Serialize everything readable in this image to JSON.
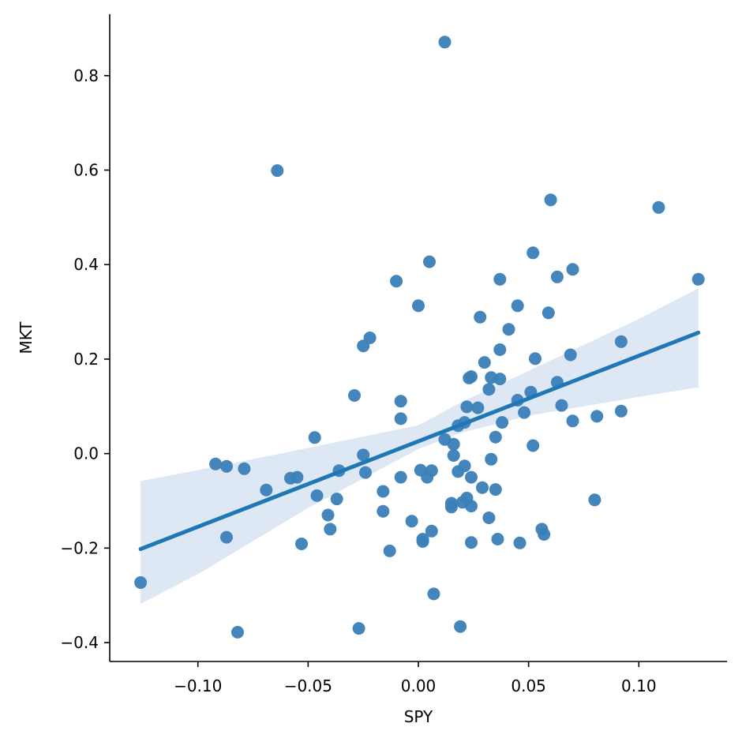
{
  "chart_data": {
    "type": "scatter",
    "title": "",
    "xlabel": "SPY",
    "ylabel": "MKT",
    "xlim": [
      -0.14,
      0.14
    ],
    "ylim": [
      -0.44,
      0.93
    ],
    "xticks": [
      -0.1,
      -0.05,
      0.0,
      0.05,
      0.1
    ],
    "xtick_labels": [
      "−0.10",
      "−0.05",
      "0.00",
      "0.05",
      "0.10"
    ],
    "yticks": [
      -0.4,
      -0.2,
      0.0,
      0.2,
      0.4,
      0.6,
      0.8
    ],
    "ytick_labels": [
      "−0.4",
      "−0.2",
      "0.0",
      "0.2",
      "0.4",
      "0.6",
      "0.8"
    ],
    "grid": false,
    "colors": {
      "points": "#3a7fb8",
      "regression_line": "#1f77b4",
      "confidence_band": "#c8d9ec"
    },
    "regression": {
      "x": [
        -0.126,
        0.127
      ],
      "y": [
        -0.202,
        0.256
      ],
      "ci_x": [
        -0.126,
        -0.1,
        -0.05,
        0.0,
        0.02,
        0.05,
        0.1,
        0.127
      ],
      "ci_upper": [
        -0.058,
        -0.035,
        0.012,
        0.06,
        0.11,
        0.175,
        0.285,
        0.35
      ],
      "ci_lower": [
        -0.318,
        -0.255,
        -0.115,
        0.01,
        0.045,
        0.08,
        0.12,
        0.14
      ]
    },
    "points": [
      [
        -0.126,
        -0.273
      ],
      [
        -0.092,
        -0.022
      ],
      [
        -0.087,
        -0.027
      ],
      [
        -0.087,
        -0.177
      ],
      [
        -0.082,
        -0.378
      ],
      [
        -0.079,
        -0.032
      ],
      [
        -0.069,
        -0.077
      ],
      [
        -0.064,
        0.599
      ],
      [
        -0.058,
        -0.052
      ],
      [
        -0.055,
        -0.05
      ],
      [
        -0.053,
        -0.191
      ],
      [
        -0.047,
        0.034
      ],
      [
        -0.046,
        -0.089
      ],
      [
        -0.041,
        -0.13
      ],
      [
        -0.04,
        -0.16
      ],
      [
        -0.037,
        -0.096
      ],
      [
        -0.036,
        -0.036
      ],
      [
        -0.029,
        0.123
      ],
      [
        -0.027,
        -0.37
      ],
      [
        -0.025,
        -0.003
      ],
      [
        -0.025,
        0.228
      ],
      [
        -0.024,
        -0.04
      ],
      [
        -0.022,
        0.245
      ],
      [
        -0.016,
        -0.08
      ],
      [
        -0.016,
        -0.122
      ],
      [
        -0.013,
        -0.206
      ],
      [
        -0.01,
        0.365
      ],
      [
        -0.008,
        0.111
      ],
      [
        -0.008,
        0.074
      ],
      [
        -0.008,
        -0.05
      ],
      [
        -0.003,
        -0.143
      ],
      [
        0.0,
        0.313
      ],
      [
        0.001,
        -0.035
      ],
      [
        0.002,
        -0.186
      ],
      [
        0.002,
        -0.181
      ],
      [
        0.004,
        -0.05
      ],
      [
        0.005,
        0.406
      ],
      [
        0.006,
        -0.164
      ],
      [
        0.006,
        -0.036
      ],
      [
        0.007,
        -0.297
      ],
      [
        0.012,
        0.871
      ],
      [
        0.012,
        0.03
      ],
      [
        0.015,
        -0.113
      ],
      [
        0.015,
        -0.105
      ],
      [
        0.016,
        0.02
      ],
      [
        0.016,
        -0.004
      ],
      [
        0.018,
        -0.038
      ],
      [
        0.018,
        0.059
      ],
      [
        0.019,
        -0.366
      ],
      [
        0.02,
        -0.103
      ],
      [
        0.021,
        -0.026
      ],
      [
        0.021,
        0.066
      ],
      [
        0.022,
        0.099
      ],
      [
        0.022,
        -0.094
      ],
      [
        0.023,
        0.16
      ],
      [
        0.024,
        -0.111
      ],
      [
        0.024,
        -0.05
      ],
      [
        0.024,
        0.163
      ],
      [
        0.024,
        -0.188
      ],
      [
        0.027,
        0.097
      ],
      [
        0.028,
        0.289
      ],
      [
        0.029,
        -0.072
      ],
      [
        0.03,
        0.193
      ],
      [
        0.032,
        -0.136
      ],
      [
        0.032,
        0.136
      ],
      [
        0.033,
        0.161
      ],
      [
        0.033,
        -0.012
      ],
      [
        0.035,
        -0.076
      ],
      [
        0.035,
        0.035
      ],
      [
        0.036,
        -0.181
      ],
      [
        0.037,
        0.369
      ],
      [
        0.037,
        0.22
      ],
      [
        0.037,
        0.158
      ],
      [
        0.038,
        0.066
      ],
      [
        0.041,
        0.263
      ],
      [
        0.045,
        0.313
      ],
      [
        0.045,
        0.113
      ],
      [
        0.046,
        -0.189
      ],
      [
        0.048,
        0.087
      ],
      [
        0.051,
        0.13
      ],
      [
        0.052,
        0.017
      ],
      [
        0.052,
        0.425
      ],
      [
        0.053,
        0.201
      ],
      [
        0.056,
        -0.16
      ],
      [
        0.057,
        -0.171
      ],
      [
        0.059,
        0.298
      ],
      [
        0.06,
        0.537
      ],
      [
        0.063,
        0.151
      ],
      [
        0.063,
        0.374
      ],
      [
        0.065,
        0.102
      ],
      [
        0.069,
        0.209
      ],
      [
        0.07,
        0.069
      ],
      [
        0.07,
        0.39
      ],
      [
        0.08,
        -0.098
      ],
      [
        0.081,
        0.079
      ],
      [
        0.092,
        0.09
      ],
      [
        0.092,
        0.237
      ],
      [
        0.109,
        0.521
      ],
      [
        0.127,
        0.369
      ]
    ]
  }
}
